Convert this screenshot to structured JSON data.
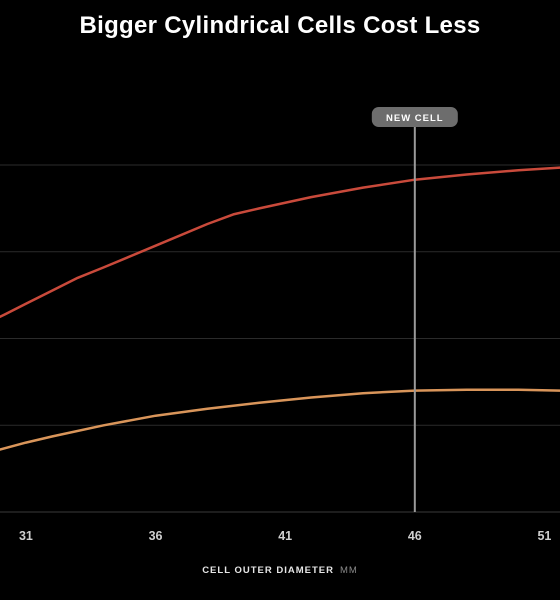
{
  "chart_data": {
    "type": "line",
    "title": "Bigger Cylindrical Cells Cost Less",
    "xlabel": "CELL OUTER DIAMETER",
    "xlabel_unit": "MM",
    "x_ticks": [
      31,
      36,
      41,
      46,
      51
    ],
    "xlim": [
      30,
      51.6
    ],
    "ylim": [
      0,
      4
    ],
    "y_gridlines": [
      1,
      2,
      3,
      4
    ],
    "series": [
      {
        "color": "#c94a3b",
        "x": [
          30,
          30.2,
          31,
          32,
          33,
          34,
          36,
          38,
          39,
          40,
          42,
          44,
          46,
          48,
          50,
          51.6
        ],
        "y": [
          2.25,
          2.28,
          2.4,
          2.55,
          2.7,
          2.82,
          3.07,
          3.32,
          3.43,
          3.5,
          3.63,
          3.74,
          3.83,
          3.89,
          3.94,
          3.97
        ]
      },
      {
        "color": "#d9955a",
        "x": [
          30,
          31,
          32,
          34,
          36,
          38,
          40,
          42,
          44,
          46,
          48,
          50,
          51.6
        ],
        "y": [
          0.72,
          0.8,
          0.87,
          1.0,
          1.11,
          1.19,
          1.26,
          1.32,
          1.37,
          1.4,
          1.41,
          1.41,
          1.4
        ]
      }
    ],
    "marker": {
      "x": 46,
      "label": "NEW CELL"
    },
    "grid": true,
    "background": "#000000"
  }
}
